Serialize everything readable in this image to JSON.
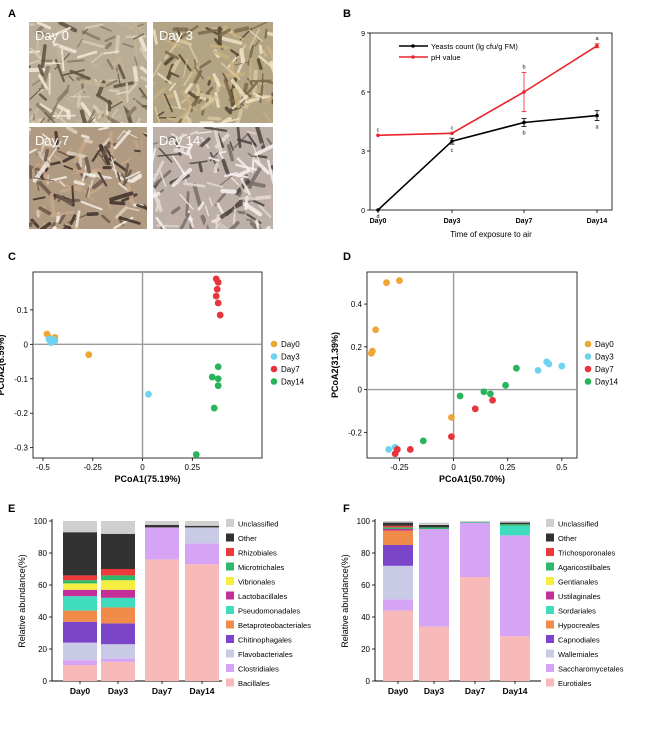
{
  "panels": {
    "A": {
      "letter": "A",
      "photos": [
        {
          "label": "Day 0",
          "base": "#b9ad98"
        },
        {
          "label": "Day 3",
          "base": "#b4a486"
        },
        {
          "label": "Day 7",
          "base": "#b09a82"
        },
        {
          "label": "Day 14",
          "base": "#bcb0a8"
        }
      ]
    },
    "B": {
      "letter": "B"
    },
    "C": {
      "letter": "C"
    },
    "D": {
      "letter": "D"
    },
    "E": {
      "letter": "E"
    },
    "F": {
      "letter": "F"
    }
  },
  "chart_data": [
    {
      "panel": "B",
      "type": "line",
      "categories": [
        "Day0",
        "Day3",
        "Day7",
        "Day14"
      ],
      "xlabel": "Time of exposure to air",
      "ylabel": "",
      "ylim": [
        0,
        9
      ],
      "yticks": [
        0,
        3,
        6,
        9
      ],
      "legend_position": "top-left",
      "series": [
        {
          "name": "Yeasts count (lg cfu/g FM)",
          "color": "#000000",
          "values": [
            0,
            3.5,
            4.45,
            4.8
          ],
          "errors": [
            0,
            0.15,
            0.2,
            0.25
          ],
          "letters": [
            "d",
            "c",
            "b",
            "a"
          ]
        },
        {
          "name": "pH value",
          "color": "#e8242a",
          "values": [
            3.8,
            3.9,
            6.0,
            8.35
          ],
          "errors": [
            0,
            0,
            1.0,
            0.1
          ],
          "letters": [
            "c",
            "c",
            "b",
            "a"
          ]
        }
      ]
    },
    {
      "panel": "C",
      "type": "scatter",
      "xlabel": "PCoA1(75.19%)",
      "ylabel": "PCoA2(6.59%)",
      "xlim": [
        -0.55,
        0.6
      ],
      "ylim": [
        -0.33,
        0.21
      ],
      "xticks": [
        -0.5,
        -0.25,
        0,
        0.25
      ],
      "yticks": [
        -0.3,
        -0.2,
        -0.1,
        0,
        0.1
      ],
      "xtick_labels": [
        "-0.5",
        "-0.25",
        "0",
        "0.25"
      ],
      "ytick_labels": [
        "-0.3",
        "-0.2",
        "-0.1",
        "0",
        "0.1"
      ],
      "legend_position": "right",
      "series": [
        {
          "name": "Day0",
          "color": "#f0a636",
          "points": [
            [
              -0.48,
              0.03
            ],
            [
              -0.44,
              0.02
            ],
            [
              -0.47,
              0.02
            ],
            [
              -0.27,
              -0.03
            ]
          ]
        },
        {
          "name": "Day3",
          "color": "#6fd3f0",
          "points": [
            [
              -0.47,
              0.015
            ],
            [
              -0.46,
              0.01
            ],
            [
              -0.45,
              0.015
            ],
            [
              -0.44,
              0.01
            ],
            [
              -0.46,
              0.005
            ],
            [
              0.03,
              -0.145
            ]
          ]
        },
        {
          "name": "Day7",
          "color": "#e8343c",
          "points": [
            [
              0.37,
              0.19
            ],
            [
              0.38,
              0.18
            ],
            [
              0.375,
              0.16
            ],
            [
              0.37,
              0.14
            ],
            [
              0.38,
              0.12
            ],
            [
              0.39,
              0.085
            ]
          ]
        },
        {
          "name": "Day14",
          "color": "#28b45a",
          "points": [
            [
              0.38,
              -0.065
            ],
            [
              0.35,
              -0.095
            ],
            [
              0.38,
              -0.1
            ],
            [
              0.38,
              -0.12
            ],
            [
              0.36,
              -0.185
            ],
            [
              0.27,
              -0.32
            ]
          ]
        }
      ]
    },
    {
      "panel": "D",
      "type": "scatter",
      "xlabel": "PCoA1(50.70%)",
      "ylabel": "PCoA2(31.39%)",
      "xlim": [
        -0.4,
        0.57
      ],
      "ylim": [
        -0.32,
        0.55
      ],
      "xticks": [
        -0.25,
        0,
        0.25,
        0.5
      ],
      "yticks": [
        -0.2,
        0,
        0.2,
        0.4
      ],
      "xtick_labels": [
        "-0.25",
        "0",
        "0.25",
        "0.5"
      ],
      "ytick_labels": [
        "-0.2",
        "0",
        "0.2",
        "0.4"
      ],
      "legend_position": "right",
      "series": [
        {
          "name": "Day0",
          "color": "#f0a636",
          "points": [
            [
              -0.31,
              0.5
            ],
            [
              -0.25,
              0.51
            ],
            [
              -0.36,
              0.28
            ],
            [
              -0.38,
              0.17
            ],
            [
              -0.375,
              0.18
            ],
            [
              -0.01,
              -0.13
            ]
          ]
        },
        {
          "name": "Day3",
          "color": "#6fd3f0",
          "points": [
            [
              -0.3,
              -0.28
            ],
            [
              -0.27,
              -0.27
            ],
            [
              0.43,
              0.13
            ],
            [
              0.44,
              0.12
            ],
            [
              0.39,
              0.09
            ],
            [
              0.5,
              0.11
            ]
          ]
        },
        {
          "name": "Day7",
          "color": "#e8343c",
          "points": [
            [
              -0.26,
              -0.28
            ],
            [
              -0.27,
              -0.3
            ],
            [
              -0.2,
              -0.28
            ],
            [
              -0.01,
              -0.22
            ],
            [
              0.1,
              -0.09
            ],
            [
              0.18,
              -0.05
            ]
          ]
        },
        {
          "name": "Day14",
          "color": "#28b45a",
          "points": [
            [
              -0.14,
              -0.24
            ],
            [
              0.03,
              -0.03
            ],
            [
              0.14,
              -0.01
            ],
            [
              0.17,
              -0.02
            ],
            [
              0.24,
              0.02
            ],
            [
              0.29,
              0.1
            ]
          ]
        }
      ]
    },
    {
      "panel": "E",
      "type": "bar",
      "stacked": true,
      "categories": [
        "Day0",
        "Day3",
        "Day7",
        "Day14"
      ],
      "ylabel": "Relative abundance(%)",
      "xlabel": "",
      "ylim": [
        0,
        100
      ],
      "yticks": [
        0,
        20,
        40,
        60,
        80,
        100
      ],
      "legend_position": "right",
      "series": [
        {
          "name": "Bacillales",
          "color": "#f8b9b9",
          "values": [
            10,
            12,
            76,
            73
          ]
        },
        {
          "name": "Clostridiales",
          "color": "#d5a4f5",
          "values": [
            3,
            2,
            20,
            13
          ]
        },
        {
          "name": "Flavobacteriales",
          "color": "#c9cbe6",
          "values": [
            11,
            9,
            0,
            10
          ]
        },
        {
          "name": "Chitinophagales",
          "color": "#7b45c9",
          "values": [
            13,
            13,
            0,
            0
          ]
        },
        {
          "name": "Betaproteobacteriales",
          "color": "#f08b4a",
          "values": [
            7,
            10,
            0,
            0
          ]
        },
        {
          "name": "Pseudomonadales",
          "color": "#3fdcc0",
          "values": [
            9,
            6,
            0,
            0
          ]
        },
        {
          "name": "Lactobacillales",
          "color": "#c22f98",
          "values": [
            4,
            5,
            0,
            0
          ]
        },
        {
          "name": "Vibrionales",
          "color": "#f5ee40",
          "values": [
            4,
            6,
            0,
            0
          ]
        },
        {
          "name": "Microtrichales",
          "color": "#2fb86a",
          "values": [
            2,
            3,
            0,
            0
          ]
        },
        {
          "name": "Rhizobiales",
          "color": "#ec3a3a",
          "values": [
            3,
            4,
            0,
            0
          ]
        },
        {
          "name": "Other",
          "color": "#333232",
          "values": [
            27,
            22,
            1.5,
            1
          ]
        },
        {
          "name": "Unclassified",
          "color": "#cfcfcf",
          "values": [
            7,
            8,
            2.5,
            3
          ]
        }
      ]
    },
    {
      "panel": "F",
      "type": "bar",
      "stacked": true,
      "categories": [
        "Day0",
        "Day3",
        "Day7",
        "Day14"
      ],
      "ylabel": "Relative abundance(%)",
      "xlabel": "",
      "ylim": [
        0,
        100
      ],
      "yticks": [
        0,
        20,
        40,
        60,
        80,
        100
      ],
      "legend_position": "right",
      "series": [
        {
          "name": "Eurotiales",
          "color": "#f8b9b9",
          "values": [
            44,
            34,
            65,
            28
          ]
        },
        {
          "name": "Saccharomycetales",
          "color": "#d5a4f5",
          "values": [
            7,
            61,
            34,
            63
          ]
        },
        {
          "name": "Wallemiales",
          "color": "#c9cbe6",
          "values": [
            21,
            0,
            0,
            0
          ]
        },
        {
          "name": "Capnodiales",
          "color": "#7b45c9",
          "values": [
            13,
            0,
            0,
            0
          ]
        },
        {
          "name": "Hypocreales",
          "color": "#f08b4a",
          "values": [
            9,
            0,
            0,
            0
          ]
        },
        {
          "name": "Sordariales",
          "color": "#3fdcc0",
          "values": [
            0,
            0,
            0,
            6
          ]
        },
        {
          "name": "Ustilaginales",
          "color": "#c22f98",
          "values": [
            1,
            0,
            0,
            0
          ]
        },
        {
          "name": "Gentianales",
          "color": "#f5ee40",
          "values": [
            0,
            0,
            0,
            0
          ]
        },
        {
          "name": "Agaricostilbales",
          "color": "#2fb86a",
          "values": [
            1,
            1,
            0.5,
            1
          ]
        },
        {
          "name": "Trichosporonales",
          "color": "#ec3a3a",
          "values": [
            1,
            0,
            0,
            0
          ]
        },
        {
          "name": "Other",
          "color": "#333232",
          "values": [
            2,
            1.5,
            0,
            1
          ]
        },
        {
          "name": "Unclassified",
          "color": "#cfcfcf",
          "values": [
            1,
            1.5,
            0.5,
            1
          ]
        }
      ]
    }
  ]
}
